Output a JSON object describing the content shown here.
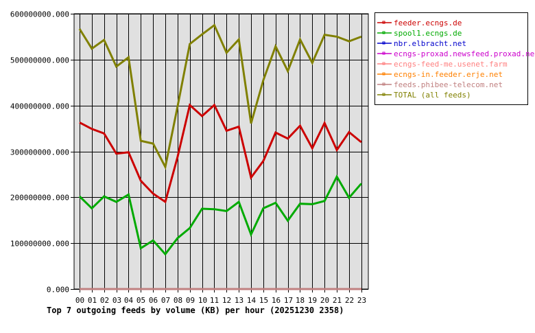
{
  "chart_data": {
    "type": "line",
    "title": "Top 7 outgoing feeds by volume (KB) per hour (20251230 2358)",
    "xlabel": "",
    "ylabel": "",
    "ylim": [
      0,
      600000000
    ],
    "y_ticks": [
      "0.000",
      "100000000.000",
      "200000000.000",
      "300000000.000",
      "400000000.000",
      "500000000.000",
      "600000000.000"
    ],
    "grid": true,
    "legend_position": "right",
    "categories": [
      "00",
      "01",
      "02",
      "03",
      "04",
      "05",
      "06",
      "07",
      "08",
      "09",
      "10",
      "11",
      "12",
      "13",
      "14",
      "15",
      "16",
      "17",
      "18",
      "19",
      "20",
      "21",
      "22",
      "23"
    ],
    "series": [
      {
        "name": "feeder.ecngs.de",
        "color": "#cc0000",
        "values": [
          363000000,
          349000000,
          339000000,
          295000000,
          298000000,
          236000000,
          208000000,
          190000000,
          288000000,
          401000000,
          377000000,
          401000000,
          345000000,
          354000000,
          243000000,
          279000000,
          341000000,
          328000000,
          356000000,
          307000000,
          362000000,
          303000000,
          342000000,
          320000000
        ]
      },
      {
        "name": "spool1.ecngs.de",
        "color": "#00aa00",
        "values": [
          202000000,
          176000000,
          202000000,
          190000000,
          206000000,
          89000000,
          106000000,
          76000000,
          111000000,
          133000000,
          175000000,
          174000000,
          170000000,
          190000000,
          119000000,
          176000000,
          188000000,
          149000000,
          186000000,
          185000000,
          192000000,
          245000000,
          199000000,
          230000000
        ]
      },
      {
        "name": "nbr.elbracht.net",
        "color": "#0000cc",
        "values": [
          0,
          0,
          0,
          0,
          0,
          0,
          0,
          0,
          0,
          0,
          0,
          0,
          0,
          0,
          0,
          0,
          0,
          0,
          0,
          0,
          0,
          0,
          0,
          0
        ]
      },
      {
        "name": "ecngs-proxad.newsfeed.proxad.net",
        "color": "#cc00cc",
        "values": [
          0,
          0,
          0,
          0,
          0,
          0,
          0,
          0,
          0,
          0,
          0,
          0,
          0,
          0,
          0,
          0,
          0,
          0,
          0,
          0,
          0,
          0,
          0,
          0
        ]
      },
      {
        "name": "ecngs-feed-me.usenet.farm",
        "color": "#ff8080",
        "values": [
          0,
          0,
          0,
          0,
          0,
          0,
          0,
          0,
          0,
          0,
          0,
          0,
          0,
          0,
          0,
          0,
          0,
          0,
          0,
          0,
          0,
          0,
          0,
          0
        ]
      },
      {
        "name": "ecngs-in.feeder.erje.net",
        "color": "#ff8000",
        "values": [
          0,
          0,
          0,
          0,
          0,
          0,
          0,
          0,
          0,
          0,
          0,
          0,
          0,
          0,
          0,
          0,
          0,
          0,
          0,
          0,
          0,
          0,
          0,
          0
        ]
      },
      {
        "name": "feeds.phibee-telecom.net",
        "color": "#c08080",
        "values": [
          0,
          0,
          0,
          0,
          0,
          0,
          0,
          0,
          0,
          0,
          0,
          0,
          0,
          0,
          0,
          0,
          0,
          0,
          0,
          0,
          0,
          0,
          0,
          0
        ]
      },
      {
        "name": "TOTAL (all feeds)",
        "color": "#808000",
        "values": [
          567000000,
          524000000,
          543000000,
          485000000,
          505000000,
          323000000,
          317000000,
          266000000,
          398000000,
          534000000,
          555000000,
          575000000,
          515000000,
          544000000,
          361000000,
          455000000,
          529000000,
          475000000,
          544000000,
          493000000,
          554000000,
          550000000,
          540000000,
          550000000
        ]
      }
    ]
  }
}
